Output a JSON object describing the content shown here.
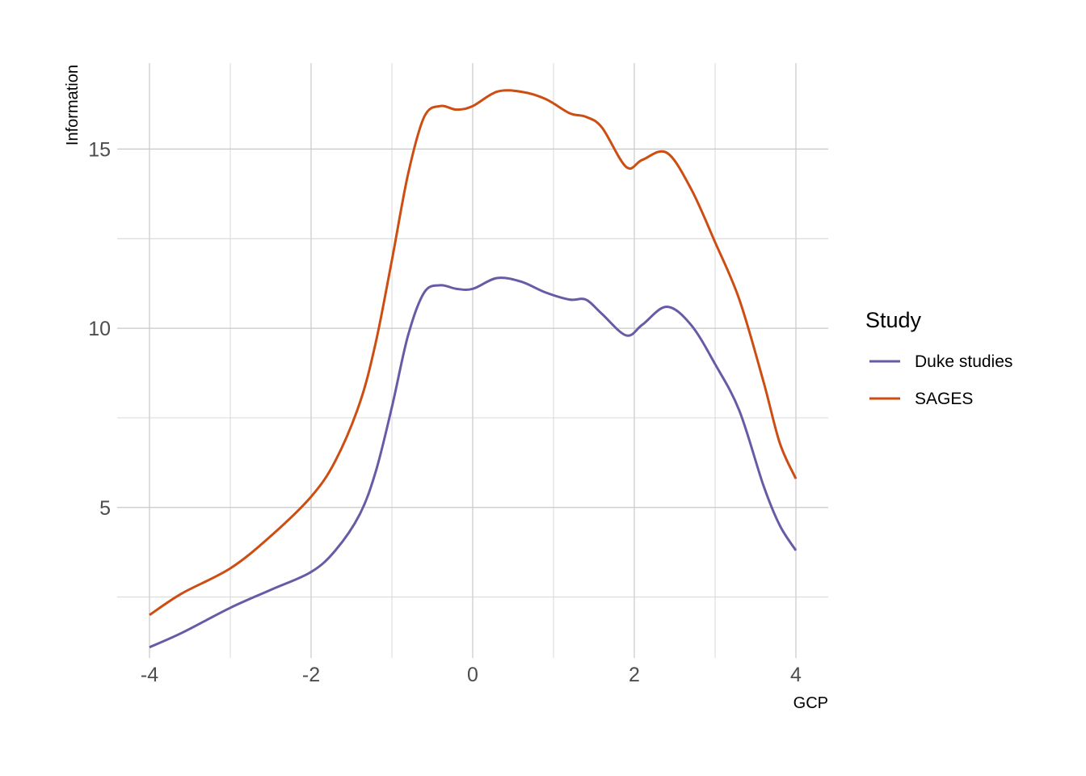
{
  "chart_data": {
    "type": "line",
    "title": "",
    "xlabel": "GCP",
    "ylabel": "Information",
    "xlim": [
      -4.4,
      4.4
    ],
    "ylim": [
      0.8,
      17.4
    ],
    "xticks": [
      -4,
      -2,
      0,
      2,
      4
    ],
    "xtick_labels": [
      "-4",
      "-2",
      "0",
      "2",
      "4"
    ],
    "yticks": [
      5,
      10,
      15
    ],
    "ytick_labels": [
      "5",
      "10",
      "15"
    ],
    "grid": true,
    "legend": {
      "title": "Study",
      "position": "right"
    },
    "series": [
      {
        "name": "Duke studies",
        "color": "#6a5aa6",
        "x": [
          -4,
          -3.6,
          -3,
          -2.5,
          -2,
          -1.7,
          -1.4,
          -1.2,
          -1,
          -0.8,
          -0.6,
          -0.4,
          -0.2,
          0,
          0.3,
          0.6,
          0.9,
          1.2,
          1.4,
          1.6,
          1.9,
          2.1,
          2.4,
          2.7,
          3,
          3.3,
          3.6,
          3.8,
          4
        ],
        "y": [
          1.1,
          1.5,
          2.2,
          2.7,
          3.2,
          3.8,
          4.8,
          6.0,
          7.8,
          9.8,
          11.0,
          11.2,
          11.1,
          11.1,
          11.4,
          11.3,
          11.0,
          10.8,
          10.8,
          10.4,
          9.8,
          10.1,
          10.6,
          10.1,
          9.0,
          7.7,
          5.6,
          4.5,
          3.8
        ]
      },
      {
        "name": "SAGES",
        "color": "#cc4e13",
        "x": [
          -4,
          -3.6,
          -3,
          -2.5,
          -2,
          -1.7,
          -1.4,
          -1.2,
          -1,
          -0.8,
          -0.6,
          -0.4,
          -0.2,
          0,
          0.3,
          0.6,
          0.9,
          1.2,
          1.4,
          1.6,
          1.9,
          2.1,
          2.4,
          2.7,
          3,
          3.3,
          3.6,
          3.8,
          4
        ],
        "y": [
          2.0,
          2.6,
          3.3,
          4.2,
          5.3,
          6.3,
          7.9,
          9.6,
          11.9,
          14.3,
          15.9,
          16.2,
          16.1,
          16.2,
          16.6,
          16.6,
          16.4,
          16.0,
          15.9,
          15.6,
          14.5,
          14.7,
          14.9,
          13.9,
          12.4,
          10.8,
          8.5,
          6.8,
          5.8
        ]
      }
    ]
  }
}
